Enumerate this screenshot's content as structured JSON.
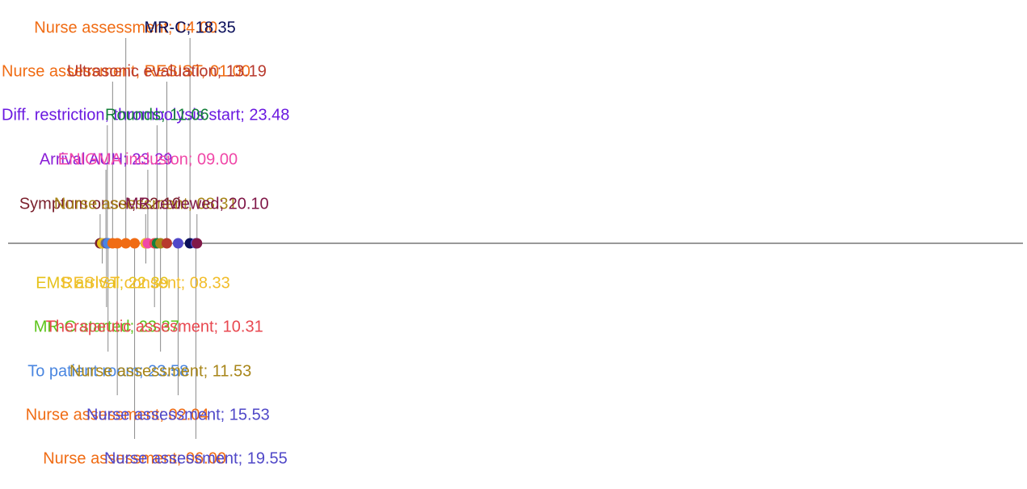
{
  "chart_data": {
    "type": "timeline",
    "title": "",
    "events": [
      {
        "label": "Symptom onset; 22.10",
        "time": "22:10",
        "color": "#7a1f2b",
        "side": "above",
        "tier": 1
      },
      {
        "label": "EMS arrival; 22.39",
        "time": "22:39",
        "color": "#e6c21a",
        "side": "below",
        "tier": 1
      },
      {
        "label": "Arrival AUH; 23.29",
        "time": "23:29",
        "color": "#8a1ed6",
        "side": "above",
        "tier": 2
      },
      {
        "label": "MR-C started; 23.37",
        "time": "23:37",
        "color": "#5cc41a",
        "side": "below",
        "tier": 2
      },
      {
        "label": "Diff. restriction, thrombolysis start; 23.48",
        "time": "23:48",
        "color": "#6a18e0",
        "side": "above",
        "tier": 3
      },
      {
        "label": "To patient room; 23.58",
        "time": "23:58",
        "color": "#4a86e0",
        "side": "below",
        "tier": 3
      },
      {
        "label": "Nurse assessment, RESIST; 01.00",
        "time": "01:00",
        "color": "#f06c14",
        "side": "above",
        "tier": 4
      },
      {
        "label": "Nurse assessment; 02.04",
        "time": "02:04",
        "color": "#f06c14",
        "side": "below",
        "tier": 4
      },
      {
        "label": "Nurse assessment; 04.00",
        "time": "04:00",
        "color": "#f06c14",
        "side": "above",
        "tier": 5
      },
      {
        "label": "Nurse assessment; 06.00",
        "time": "06:00",
        "color": "#f06c14",
        "side": "below",
        "tier": 5
      },
      {
        "label": "Nurse assessment; 08.31",
        "time": "08:31",
        "color": "#a8861a",
        "side": "above",
        "tier": 1
      },
      {
        "label": "RESIST consent; 08.33",
        "time": "08:33",
        "color": "#f2bd2a",
        "side": "below",
        "tier": 1
      },
      {
        "label": "ENIGMA inclusion; 09.00",
        "time": "09:00",
        "color": "#f048a8",
        "side": "above",
        "tier": 2
      },
      {
        "label": "Therapeutic assesment; 10.31",
        "time": "10:31",
        "color": "#e84850",
        "side": "below",
        "tier": 2
      },
      {
        "label": "Rounds; 11.06",
        "time": "11:06",
        "color": "#14803a",
        "side": "above",
        "tier": 3
      },
      {
        "label": "Nurse assessment; 11.53",
        "time": "11:53",
        "color": "#a8861a",
        "side": "below",
        "tier": 3
      },
      {
        "label": "Ultrasonic evaluation; 13.19",
        "time": "13:19",
        "color": "#b83a2e",
        "side": "above",
        "tier": 4
      },
      {
        "label": "Nurse assessment; 15.53",
        "time": "15:53",
        "color": "#5048c8",
        "side": "below",
        "tier": 4
      },
      {
        "label": "MR-C; 18.35",
        "time": "18:35",
        "color": "#0a0f5a",
        "side": "above",
        "tier": 5
      },
      {
        "label": "Nurse assessment; 19.55",
        "time": "19:55",
        "color": "#5048c8",
        "side": "below",
        "tier": 5
      },
      {
        "label": "MR reviewed; 20.10",
        "time": "20:10",
        "color": "#801848",
        "side": "above",
        "tier": 1
      }
    ]
  }
}
